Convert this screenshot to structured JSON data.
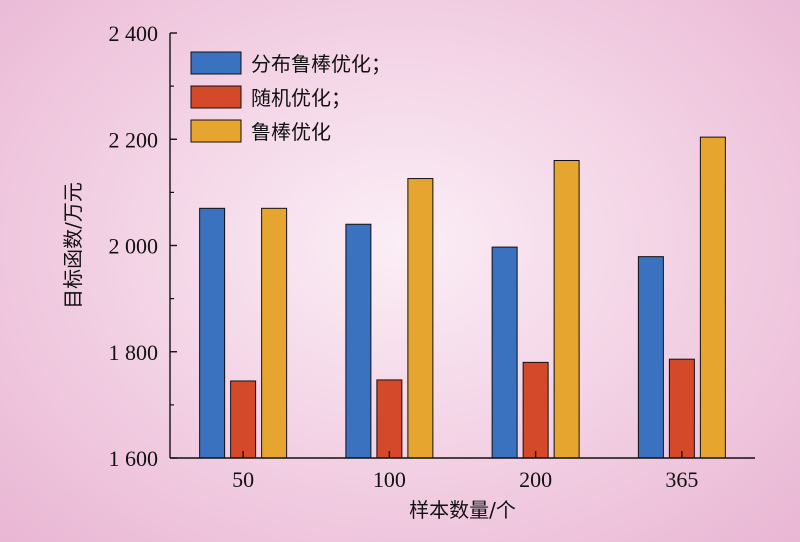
{
  "chart_data": {
    "type": "bar",
    "title": "",
    "xlabel": "样本数量/个",
    "ylabel": "目标函数/万元",
    "categories": [
      "50",
      "100",
      "200",
      "365"
    ],
    "ylim": [
      1600,
      2400
    ],
    "yticks": [
      1600,
      1800,
      2000,
      2200,
      2400
    ],
    "ytick_labels": [
      "1 600",
      "1 800",
      "2 000",
      "2 200",
      "2 400"
    ],
    "legend_position": "top-left",
    "grid": false,
    "series": [
      {
        "name": "分布鲁棒优化；",
        "color": "#3a72c0",
        "values": [
          2070,
          2040,
          1997,
          1979
        ]
      },
      {
        "name": "随机优化；",
        "color": "#d3492a",
        "values": [
          1745,
          1747,
          1780,
          1786
        ]
      },
      {
        "name": "鲁棒优化",
        "color": "#e5a52e",
        "values": [
          2070,
          2126,
          2160,
          2204
        ]
      }
    ]
  }
}
